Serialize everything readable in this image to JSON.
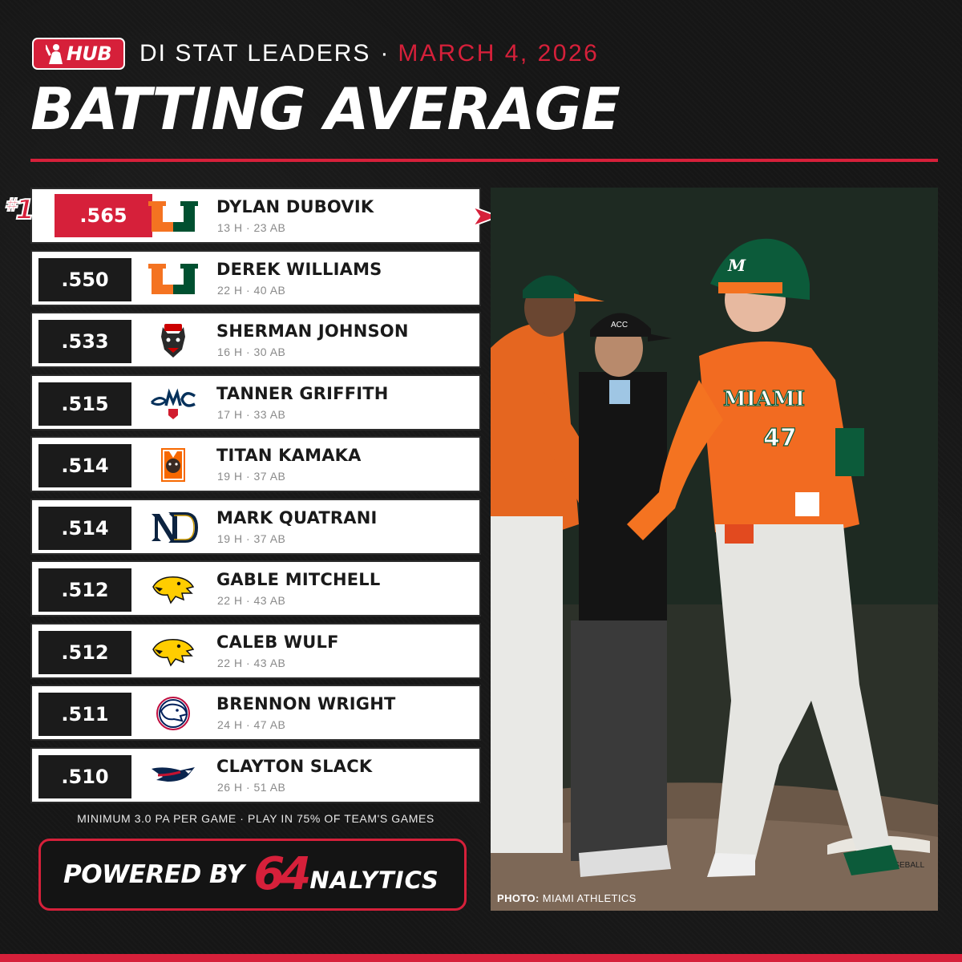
{
  "header": {
    "brand": "HUB",
    "title": "DI STAT LEADERS",
    "separator": "·",
    "date": "MARCH 4, 2026",
    "main_title": "BATTING AVERAGE"
  },
  "leaders": [
    {
      "rank": "1",
      "avg": ".565",
      "name": "DYLAN DUBOVIK",
      "stats": "13 H · 23 AB",
      "team_logo": "miami-u-logo"
    },
    {
      "avg": ".550",
      "name": "DEREK WILLIAMS",
      "stats": "22 H · 40 AB",
      "team_logo": "miami-u-logo"
    },
    {
      "avg": ".533",
      "name": "SHERMAN JOHNSON",
      "stats": "16 H · 30 AB",
      "team_logo": "nc-state-wolf-logo"
    },
    {
      "avg": ".515",
      "name": "TANNER GRIFFITH",
      "stats": "17 H · 33 AB",
      "team_logo": "smc-gaels-logo"
    },
    {
      "avg": ".514",
      "name": "TITAN KAMAKA",
      "stats": "19 H · 37 AB",
      "team_logo": "mercer-bear-logo"
    },
    {
      "avg": ".514",
      "name": "MARK QUATRANI",
      "stats": "19 H · 37 AB",
      "team_logo": "notre-dame-nd-logo"
    },
    {
      "avg": ".512",
      "name": "GABLE MITCHELL",
      "stats": "22 H · 43 AB",
      "team_logo": "iowa-hawkeye-logo"
    },
    {
      "avg": ".512",
      "name": "CALEB WULF",
      "stats": "22 H · 43 AB",
      "team_logo": "iowa-hawkeye-logo"
    },
    {
      "avg": ".511",
      "name": "BRENNON WRIGHT",
      "stats": "24 H · 47 AB",
      "team_logo": "south-alabama-jaguar-logo"
    },
    {
      "avg": ".510",
      "name": "CLAYTON SLACK",
      "stats": "26 H · 51 AB",
      "team_logo": "liberty-flames-eagle-logo"
    }
  ],
  "footnote": "MINIMUM 3.0 PA PER GAME · PLAY IN 75% OF TEAM'S GAMES",
  "powered": {
    "label": "POWERED BY",
    "brand_number": "64",
    "brand_rest": "NALYTICS"
  },
  "photo": {
    "credit_label": "PHOTO:",
    "credit_source": "MIAMI ATHLETICS",
    "jersey_text": "MIAMI",
    "jersey_number": "47",
    "helmet_letter": "M",
    "cap_text": "ACC",
    "mound_text": "BASEBALL"
  },
  "colors": {
    "accent": "#d6203a",
    "background": "#161616",
    "miami_orange": "#f47321",
    "miami_green": "#005030"
  }
}
